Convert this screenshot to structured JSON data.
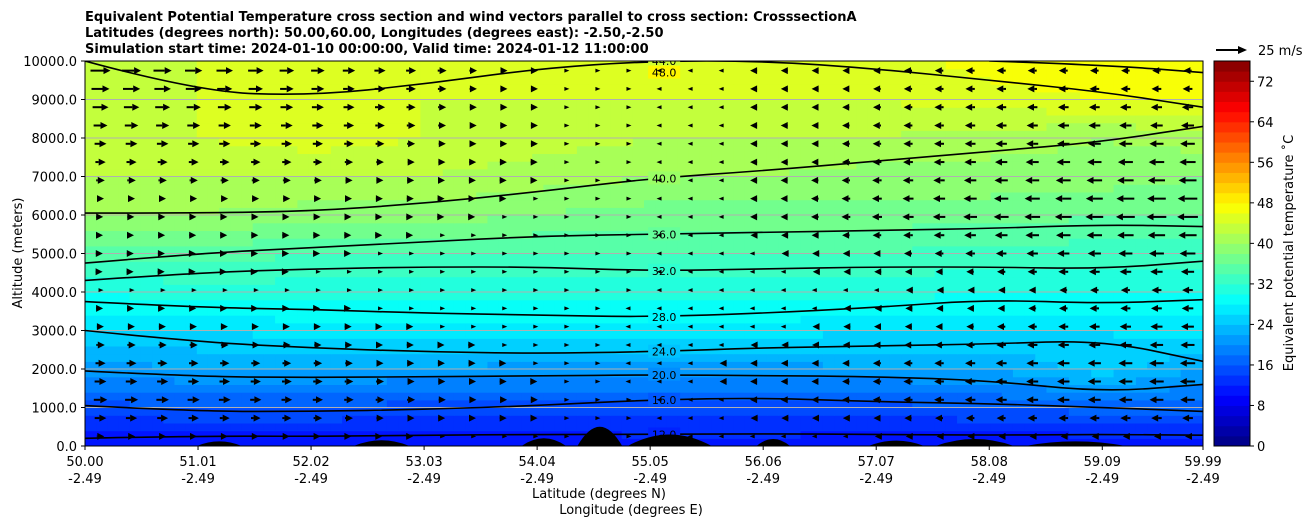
{
  "chart_data": {
    "type": "heatmap",
    "title_lines": [
      "Equivalent Potential Temperature cross section and wind vectors parallel to cross section: CrosssectionA",
      "Latitudes (degrees north): 50.00,60.00, Longitudes (degrees east): -2.50,-2.50",
      "Simulation start time: 2024-01-10 00:00:00, Valid time: 2024-01-12 11:00:00"
    ],
    "ylabel": "Altitude (meters)",
    "xlabel_1": "Latitude (degrees N)",
    "xlabel_2": "Longitude (degrees E)",
    "ylim": [
      0,
      10000
    ],
    "xlim": [
      50.0,
      59.99
    ],
    "yticks": [
      "0.0",
      "1000.0",
      "2000.0",
      "3000.0",
      "4000.0",
      "5000.0",
      "6000.0",
      "7000.0",
      "8000.0",
      "9000.0",
      "10000.0"
    ],
    "ytick_values": [
      0,
      1000,
      2000,
      3000,
      4000,
      5000,
      6000,
      7000,
      8000,
      9000,
      10000
    ],
    "xticks_lat": [
      "50.00",
      "51.01",
      "52.02",
      "53.03",
      "54.04",
      "55.05",
      "56.06",
      "57.07",
      "58.08",
      "59.09",
      "59.99"
    ],
    "xticks_lon": [
      "-2.49",
      "-2.49",
      "-2.49",
      "-2.49",
      "-2.49",
      "-2.49",
      "-2.49",
      "-2.49",
      "-2.49",
      "-2.49",
      "-2.49"
    ],
    "xtick_values": [
      50.0,
      51.01,
      52.02,
      53.03,
      54.04,
      55.05,
      56.06,
      57.07,
      58.08,
      59.09,
      59.99
    ],
    "colorbar": {
      "label": "Equivalent potential temperature ˚C",
      "min": 0,
      "max": 76,
      "ticks": [
        "0",
        "8",
        "16",
        "24",
        "32",
        "40",
        "48",
        "56",
        "64",
        "72"
      ],
      "tick_values": [
        0,
        8,
        16,
        24,
        32,
        40,
        48,
        56,
        64,
        72
      ],
      "colormap": "jet"
    },
    "quiver_key": {
      "label": "25 m/s",
      "value": 25
    },
    "contours": [
      {
        "label": "12.0",
        "value": 12,
        "alt": [
          200,
          260,
          250,
          280,
          300,
          300,
          320,
          300,
          280,
          300,
          280
        ]
      },
      {
        "label": "16.0",
        "value": 16,
        "alt": [
          1050,
          900,
          900,
          950,
          1050,
          1200,
          1250,
          1150,
          1100,
          1000,
          900
        ]
      },
      {
        "label": "20.0",
        "value": 20,
        "alt": [
          1950,
          1800,
          1780,
          1800,
          1820,
          1850,
          1830,
          1800,
          1700,
          1400,
          1600
        ]
      },
      {
        "label": "24.0",
        "value": 24,
        "alt": [
          3000,
          2700,
          2550,
          2450,
          2400,
          2450,
          2550,
          2600,
          2650,
          2750,
          2200
        ]
      },
      {
        "label": "28.0",
        "value": 28,
        "alt": [
          3750,
          3600,
          3550,
          3450,
          3400,
          3350,
          3450,
          3600,
          3800,
          3700,
          3800
        ]
      },
      {
        "label": "32.0",
        "value": 32,
        "alt": [
          4300,
          4500,
          4600,
          4650,
          4650,
          4550,
          4600,
          4650,
          4650,
          4600,
          4800
        ]
      },
      {
        "label": "36.0",
        "value": 36,
        "alt": [
          4750,
          5000,
          5150,
          5300,
          5450,
          5500,
          5550,
          5600,
          5650,
          5750,
          5700
        ]
      },
      {
        "label": "40.0",
        "value": 40,
        "alt": [
          6050,
          6050,
          6100,
          6300,
          6600,
          6950,
          7150,
          7400,
          7650,
          7900,
          8300
        ]
      },
      {
        "label": "44.0",
        "value": 44,
        "alt": [
          10000,
          9200,
          9100,
          9400,
          9800,
          10000,
          10000,
          9800,
          9500,
          9200,
          8800
        ]
      },
      {
        "label": "48.0",
        "value": 48,
        "alt": [
          null,
          null,
          null,
          null,
          null,
          null,
          null,
          null,
          10000,
          9900,
          9700
        ]
      }
    ],
    "theta_field": {
      "lat_nodes": [
        50.0,
        51.01,
        52.02,
        53.03,
        54.04,
        55.05,
        56.06,
        57.07,
        58.08,
        59.09,
        59.99
      ],
      "alt_nodes": [
        0,
        1000,
        2000,
        3000,
        4000,
        5000,
        6000,
        7000,
        8000,
        9000,
        10000
      ],
      "values": [
        [
          10,
          10,
          10,
          10,
          10,
          11,
          11,
          10,
          10,
          10,
          10
        ],
        [
          15,
          16,
          16,
          15,
          15,
          15,
          15,
          15,
          16,
          17,
          17
        ],
        [
          21,
          22,
          22,
          22,
          21,
          21,
          21,
          22,
          22,
          25,
          22
        ],
        [
          26,
          26,
          27,
          27,
          27,
          27,
          27,
          26,
          26,
          26,
          27
        ],
        [
          30,
          31,
          31,
          31,
          31,
          31,
          31,
          31,
          30,
          30,
          30
        ],
        [
          35,
          35,
          34,
          34,
          34,
          34,
          34,
          34,
          33,
          33,
          33
        ],
        [
          40,
          40,
          39,
          39,
          38,
          37,
          37,
          37,
          37,
          36,
          36
        ],
        [
          42,
          42,
          42,
          42,
          41,
          40,
          40,
          39,
          39,
          39,
          38
        ],
        [
          43,
          44,
          45,
          44,
          43,
          42,
          42,
          42,
          41,
          40,
          41
        ],
        [
          43,
          44,
          44,
          44,
          44,
          44,
          44,
          44,
          45,
          46,
          46
        ],
        [
          44,
          44,
          44,
          44,
          44,
          44,
          44,
          45,
          47,
          48,
          48
        ]
      ]
    },
    "wind_u": {
      "lat_nodes": [
        50.0,
        52.0,
        54.0,
        55.0,
        56.0,
        58.0,
        59.99
      ],
      "alt_nodes": [
        0,
        1000,
        2000,
        4000,
        6000,
        8000,
        10000
      ],
      "values": [
        [
          3,
          2,
          1,
          0,
          -1,
          -2,
          -1
        ],
        [
          8,
          6,
          3,
          0,
          -3,
          -6,
          -8
        ],
        [
          6,
          5,
          2,
          -1,
          -3,
          -6,
          -9
        ],
        [
          2,
          2,
          1,
          0,
          -1,
          -3,
          -6
        ],
        [
          3,
          3,
          2,
          0,
          -3,
          -8,
          -12
        ],
        [
          7,
          6,
          3,
          0,
          -3,
          -6,
          -8
        ],
        [
          12,
          8,
          3,
          0,
          -3,
          -5,
          -4
        ]
      ]
    }
  }
}
